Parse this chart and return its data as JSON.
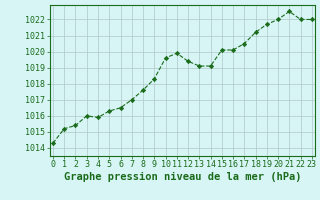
{
  "x": [
    0,
    1,
    2,
    3,
    4,
    5,
    6,
    7,
    8,
    9,
    10,
    11,
    12,
    13,
    14,
    15,
    16,
    17,
    18,
    19,
    20,
    21,
    22,
    23
  ],
  "y": [
    1014.3,
    1015.2,
    1015.4,
    1016.0,
    1015.9,
    1016.3,
    1016.5,
    1017.0,
    1017.6,
    1018.3,
    1019.6,
    1019.9,
    1019.4,
    1019.1,
    1019.1,
    1020.1,
    1020.1,
    1020.5,
    1021.2,
    1021.7,
    1022.0,
    1022.5,
    1022.0,
    1022.0
  ],
  "line_color": "#1a6b1a",
  "marker": "D",
  "marker_size": 2.2,
  "bg_color": "#d7f5f5",
  "grid_color": "#b0c8c8",
  "xlabel": "Graphe pression niveau de la mer (hPa)",
  "xlabel_fontsize": 7.5,
  "xlabel_color": "#1a6b1a",
  "xlabel_bold": true,
  "ytick_labels": [
    "1014",
    "1015",
    "1016",
    "1017",
    "1018",
    "1019",
    "1020",
    "1021",
    "1022"
  ],
  "ylim": [
    1013.5,
    1022.9
  ],
  "xlim": [
    -0.3,
    23.3
  ],
  "tick_fontsize": 6.0,
  "tick_color": "#1a6b1a",
  "border_color": "#1a6b1a"
}
